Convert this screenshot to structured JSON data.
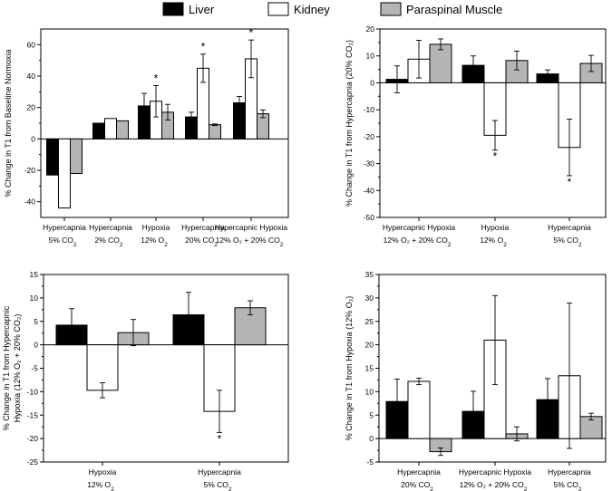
{
  "legend": [
    {
      "name": "Liver",
      "color": "#000000"
    },
    {
      "name": "Kidney",
      "color": "#ffffff"
    },
    {
      "name": "Paraspinal Muscle",
      "color": "#b5b5b5"
    }
  ],
  "chart_data": [
    {
      "type": "bar",
      "ylabel": "% Change in T1 from Baseline Normoxia",
      "ylim": [
        -50,
        70
      ],
      "yticks": [
        -40,
        -20,
        0,
        20,
        40,
        60
      ],
      "categories": [
        {
          "line1": "Hypercapnia",
          "line2": "5% CO",
          "sub": "2"
        },
        {
          "line1": "Hypercapnia",
          "line2": "2% CO",
          "sub": "2"
        },
        {
          "line1": "Hypoxia",
          "line2": "12% O",
          "sub": "2"
        },
        {
          "line1": "Hypercapnia",
          "line2": "20% CO",
          "sub": "2"
        },
        {
          "line1": "Hypercapnic Hypoxia",
          "line2": "12% O₂ + 20% CO",
          "sub": "2"
        }
      ],
      "series": [
        {
          "name": "Liver",
          "values": [
            -23,
            10,
            21,
            14,
            23
          ],
          "errors": [
            0,
            0,
            8,
            3,
            4
          ]
        },
        {
          "name": "Kidney",
          "values": [
            -44,
            13,
            24,
            45,
            51
          ],
          "errors": [
            0,
            0,
            10,
            9,
            12
          ]
        },
        {
          "name": "Paraspinal Muscle",
          "values": [
            -22,
            11.5,
            17,
            9,
            16
          ],
          "errors": [
            0,
            0,
            5,
            0.5,
            2.5
          ]
        }
      ],
      "significance": [
        {
          "category": 2,
          "series": 1,
          "label": "*"
        },
        {
          "category": 3,
          "series": 1,
          "label": "*"
        },
        {
          "category": 4,
          "series": 1,
          "label": "*"
        }
      ]
    },
    {
      "type": "bar",
      "ylabel": "% Change in T1 from Hypercapnia (20% CO₂)",
      "ylim": [
        -50,
        20
      ],
      "yticks": [
        -50,
        -40,
        -30,
        -20,
        -10,
        0,
        10,
        20
      ],
      "categories": [
        {
          "line1": "Hypercapnic Hypoxia",
          "line2": "12% O₂ + 20% CO",
          "sub": "2"
        },
        {
          "line1": "Hypoxia",
          "line2": "12% O",
          "sub": "2"
        },
        {
          "line1": "Hypercapnia",
          "line2": "5% CO",
          "sub": "2"
        }
      ],
      "series": [
        {
          "name": "Liver",
          "values": [
            1.3,
            6.5,
            3.3
          ],
          "errors": [
            5,
            3.5,
            1.5
          ]
        },
        {
          "name": "Kidney",
          "values": [
            8.8,
            -19.5,
            -24
          ],
          "errors": [
            7,
            5.5,
            10.5
          ]
        },
        {
          "name": "Paraspinal Muscle",
          "values": [
            14.3,
            8.3,
            7.2
          ],
          "errors": [
            2,
            3.5,
            3
          ]
        }
      ],
      "significance": [
        {
          "category": 1,
          "series": 1,
          "label": "*"
        },
        {
          "category": 2,
          "series": 1,
          "label": "*"
        }
      ]
    },
    {
      "type": "bar",
      "ylabel": "% Change in T1 from Hypercapnic Hypoxia (12% O₂ + 20% CO₂)",
      "ylim": [
        -25,
        15
      ],
      "yticks": [
        -25,
        -20,
        -15,
        -10,
        -5,
        0,
        5,
        10,
        15
      ],
      "categories": [
        {
          "line1": "Hypoxia",
          "line2": "12% O",
          "sub": "2"
        },
        {
          "line1": "Hypercapnia",
          "line2": "5% CO",
          "sub": "2"
        }
      ],
      "series": [
        {
          "name": "Liver",
          "values": [
            4.2,
            6.4
          ],
          "errors": [
            3.5,
            4.8
          ]
        },
        {
          "name": "Kidney",
          "values": [
            -9.7,
            -14.2
          ],
          "errors": [
            1.6,
            4.5
          ]
        },
        {
          "name": "Paraspinal Muscle",
          "values": [
            2.6,
            7.9
          ],
          "errors": [
            2.8,
            1.5
          ]
        }
      ],
      "significance": [
        {
          "category": 1,
          "series": 1,
          "label": "*"
        }
      ]
    },
    {
      "type": "bar",
      "ylabel": "% Change in T1 from Hypoxia (12% O₂)",
      "ylim": [
        -5,
        35
      ],
      "yticks": [
        -5,
        0,
        5,
        10,
        15,
        20,
        25,
        30,
        35
      ],
      "categories": [
        {
          "line1": "Hypercapnia",
          "line2": "20% CO",
          "sub": "2"
        },
        {
          "line1": "Hypercapnic Hypoxia",
          "line2": "12% O₂ + 20% CO",
          "sub": "2"
        },
        {
          "line1": "Hypercapnia",
          "line2": "5% CO",
          "sub": "2"
        }
      ],
      "series": [
        {
          "name": "Liver",
          "values": [
            7.9,
            5.8,
            8.3
          ],
          "errors": [
            4.8,
            4.3,
            4.5
          ]
        },
        {
          "name": "Kidney",
          "values": [
            12.2,
            21,
            13.4
          ],
          "errors": [
            0.7,
            9.5,
            15.5
          ]
        },
        {
          "name": "Paraspinal Muscle",
          "values": [
            -2.8,
            1,
            4.7
          ],
          "errors": [
            0.8,
            1.5,
            0.7
          ]
        }
      ],
      "significance": []
    }
  ]
}
